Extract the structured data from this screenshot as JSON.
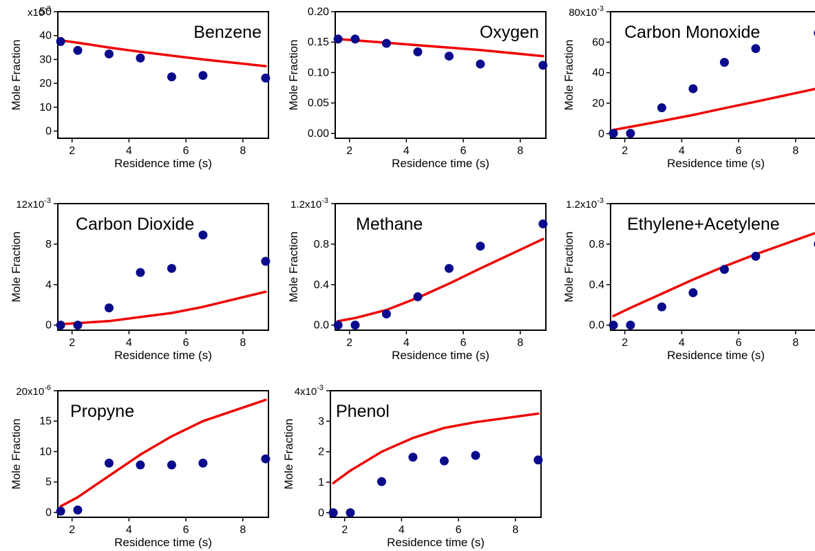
{
  "colors": {
    "measured": "#0a0a8c",
    "model": "#ee0000"
  },
  "chart_data": [
    {
      "type": "scatter",
      "title": "Benzene",
      "xlabel": "Residence time (s)",
      "ylabel": "Mole Fraction",
      "multiplier": {
        "base": "x10",
        "exp": "-3"
      },
      "xlim": [
        1.5,
        8.9
      ],
      "ylim": [
        -3,
        50
      ],
      "xticks": [
        2,
        4,
        6,
        8
      ],
      "yticks": [
        0,
        10,
        20,
        30,
        40,
        50
      ],
      "yticklabels": [
        "0",
        "10",
        "20",
        "30",
        "40",
        "50"
      ],
      "series": [
        {
          "kind": "points",
          "x": [
            1.6,
            2.2,
            3.3,
            4.4,
            5.5,
            6.6,
            8.8
          ],
          "y": [
            37.5,
            33.8,
            32.3,
            30.6,
            22.7,
            23.3,
            22.2
          ]
        },
        {
          "kind": "line",
          "x": [
            1.6,
            2.2,
            3.3,
            4.4,
            5.5,
            6.6,
            8.8
          ],
          "y": [
            38.0,
            37.0,
            35.0,
            33.2,
            31.6,
            30.0,
            27.2
          ]
        }
      ]
    },
    {
      "type": "scatter",
      "title": "Oxygen",
      "xlabel": "Residence time (s)",
      "ylabel": "Mole Fraction",
      "multiplier": null,
      "xlim": [
        1.5,
        8.9
      ],
      "ylim": [
        -0.008,
        0.2
      ],
      "xticks": [
        2,
        4,
        6,
        8
      ],
      "yticks": [
        0,
        0.05,
        0.1,
        0.15,
        0.2
      ],
      "yticklabels": [
        "0.00",
        "0.05",
        "0.10",
        "0.15",
        "0.20"
      ],
      "series": [
        {
          "kind": "points",
          "x": [
            1.6,
            2.2,
            3.3,
            4.4,
            5.5,
            6.6,
            8.8
          ],
          "y": [
            0.155,
            0.155,
            0.148,
            0.134,
            0.127,
            0.114,
            0.112
          ]
        },
        {
          "kind": "line",
          "x": [
            1.6,
            2.2,
            3.3,
            4.4,
            5.5,
            6.6,
            8.8
          ],
          "y": [
            0.155,
            0.153,
            0.149,
            0.145,
            0.141,
            0.137,
            0.127
          ]
        }
      ]
    },
    {
      "type": "scatter",
      "title": "Carbon Monoxide",
      "xlabel": "Residence time (s)",
      "ylabel": "Mole Fraction",
      "multiplier": {
        "base": "80x10",
        "exp": "-3"
      },
      "xlim": [
        1.5,
        8.9
      ],
      "ylim": [
        -3,
        80
      ],
      "xticks": [
        2,
        4,
        6,
        8
      ],
      "yticks": [
        0,
        20,
        40,
        60,
        80
      ],
      "yticklabels": [
        "0",
        "20",
        "40",
        "60",
        ""
      ],
      "series": [
        {
          "kind": "points",
          "x": [
            1.6,
            2.2,
            3.3,
            4.4,
            5.5,
            6.6,
            8.8
          ],
          "y": [
            0.2,
            0.2,
            17.0,
            29.5,
            46.8,
            55.8,
            66.0
          ]
        },
        {
          "kind": "line",
          "x": [
            1.6,
            2.2,
            3.3,
            4.4,
            5.5,
            6.6,
            8.8
          ],
          "y": [
            2.5,
            4.5,
            8.3,
            12.3,
            16.7,
            21.0,
            29.8
          ]
        }
      ]
    },
    {
      "type": "scatter",
      "title": "Carbon Dioxide",
      "xlabel": "Residence time (s)",
      "ylabel": "Mole Fraction",
      "multiplier": {
        "base": "12x10",
        "exp": "-3"
      },
      "xlim": [
        1.5,
        8.9
      ],
      "ylim": [
        -0.5,
        12
      ],
      "xticks": [
        2,
        4,
        6,
        8
      ],
      "yticks": [
        0,
        4,
        8,
        12
      ],
      "yticklabels": [
        "0",
        "4",
        "8",
        ""
      ],
      "series": [
        {
          "kind": "points",
          "x": [
            1.6,
            2.2,
            3.3,
            4.4,
            5.5,
            6.6,
            8.8
          ],
          "y": [
            0.0,
            0.0,
            1.7,
            5.2,
            5.6,
            8.9,
            6.3
          ]
        },
        {
          "kind": "line",
          "x": [
            1.6,
            2.2,
            3.3,
            4.4,
            5.5,
            6.6,
            8.8
          ],
          "y": [
            0.1,
            0.2,
            0.4,
            0.8,
            1.2,
            1.8,
            3.3
          ]
        }
      ]
    },
    {
      "type": "scatter",
      "title": "Methane",
      "xlabel": "Residence time (s)",
      "ylabel": "Mole Fraction",
      "multiplier": {
        "base": "1.2x10",
        "exp": "-3"
      },
      "xlim": [
        1.5,
        8.9
      ],
      "ylim": [
        -0.05,
        1.2
      ],
      "xticks": [
        2,
        4,
        6,
        8
      ],
      "yticks": [
        0,
        0.4,
        0.8,
        1.2
      ],
      "yticklabels": [
        "0.0",
        "0.4",
        "0.8",
        ""
      ],
      "series": [
        {
          "kind": "points",
          "x": [
            1.6,
            2.2,
            3.3,
            4.4,
            5.5,
            6.6,
            8.8
          ],
          "y": [
            0.0,
            0.0,
            0.11,
            0.28,
            0.56,
            0.78,
            1.0
          ]
        },
        {
          "kind": "line",
          "x": [
            1.6,
            2.2,
            3.3,
            4.4,
            5.5,
            6.6,
            8.8
          ],
          "y": [
            0.04,
            0.07,
            0.15,
            0.27,
            0.41,
            0.56,
            0.85
          ]
        }
      ]
    },
    {
      "type": "scatter",
      "title": "Ethylene+Acetylene",
      "xlabel": "Residence time (s)",
      "ylabel": "Mole Fraction",
      "multiplier": {
        "base": "1.2x10",
        "exp": "-3"
      },
      "xlim": [
        1.5,
        8.9
      ],
      "ylim": [
        -0.05,
        1.2
      ],
      "xticks": [
        2,
        4,
        6,
        8
      ],
      "yticks": [
        0,
        0.4,
        0.8,
        1.2
      ],
      "yticklabels": [
        "0.0",
        "0.4",
        "0.8",
        ""
      ],
      "series": [
        {
          "kind": "points",
          "x": [
            1.6,
            2.2,
            3.3,
            4.4,
            5.5,
            6.6,
            8.8
          ],
          "y": [
            0.0,
            0.0,
            0.18,
            0.32,
            0.55,
            0.68,
            0.8
          ]
        },
        {
          "kind": "line",
          "x": [
            1.6,
            2.2,
            3.3,
            4.4,
            5.5,
            6.6,
            8.8
          ],
          "y": [
            0.09,
            0.17,
            0.31,
            0.45,
            0.58,
            0.7,
            0.92
          ]
        }
      ]
    },
    {
      "type": "scatter",
      "title": "Propyne",
      "xlabel": "Residence time (s)",
      "ylabel": "Mole Fraction",
      "multiplier": {
        "base": "20x10",
        "exp": "-6"
      },
      "xlim": [
        1.5,
        8.9
      ],
      "ylim": [
        -0.8,
        20
      ],
      "xticks": [
        2,
        4,
        6,
        8
      ],
      "yticks": [
        0,
        5,
        10,
        15,
        20
      ],
      "yticklabels": [
        "0",
        "5",
        "10",
        "15",
        ""
      ],
      "series": [
        {
          "kind": "points",
          "x": [
            1.6,
            2.2,
            3.3,
            4.4,
            5.5,
            6.6,
            8.8
          ],
          "y": [
            0.2,
            0.4,
            8.1,
            7.8,
            7.8,
            8.1,
            8.8
          ]
        },
        {
          "kind": "line",
          "x": [
            1.6,
            2.2,
            3.3,
            4.4,
            5.5,
            6.6,
            8.8
          ],
          "y": [
            1.0,
            2.5,
            6.0,
            9.5,
            12.5,
            15.0,
            18.5
          ]
        }
      ]
    },
    {
      "type": "scatter",
      "title": "Phenol",
      "xlabel": "Residence time (s)",
      "ylabel": "Mole Fraction",
      "multiplier": {
        "base": "4x10",
        "exp": "-3"
      },
      "xlim": [
        1.5,
        8.9
      ],
      "ylim": [
        -0.15,
        4
      ],
      "xticks": [
        2,
        4,
        6,
        8
      ],
      "yticks": [
        0,
        1,
        2,
        3,
        4
      ],
      "yticklabels": [
        "0",
        "1",
        "2",
        "3",
        ""
      ],
      "series": [
        {
          "kind": "points",
          "x": [
            1.6,
            2.2,
            3.3,
            4.4,
            5.5,
            6.6,
            8.8
          ],
          "y": [
            0.0,
            0.0,
            1.02,
            1.82,
            1.7,
            1.88,
            1.73
          ]
        },
        {
          "kind": "line",
          "x": [
            1.6,
            2.2,
            3.3,
            4.4,
            5.5,
            6.6,
            8.8
          ],
          "y": [
            0.97,
            1.38,
            2.0,
            2.45,
            2.78,
            2.97,
            3.25
          ]
        }
      ]
    }
  ]
}
